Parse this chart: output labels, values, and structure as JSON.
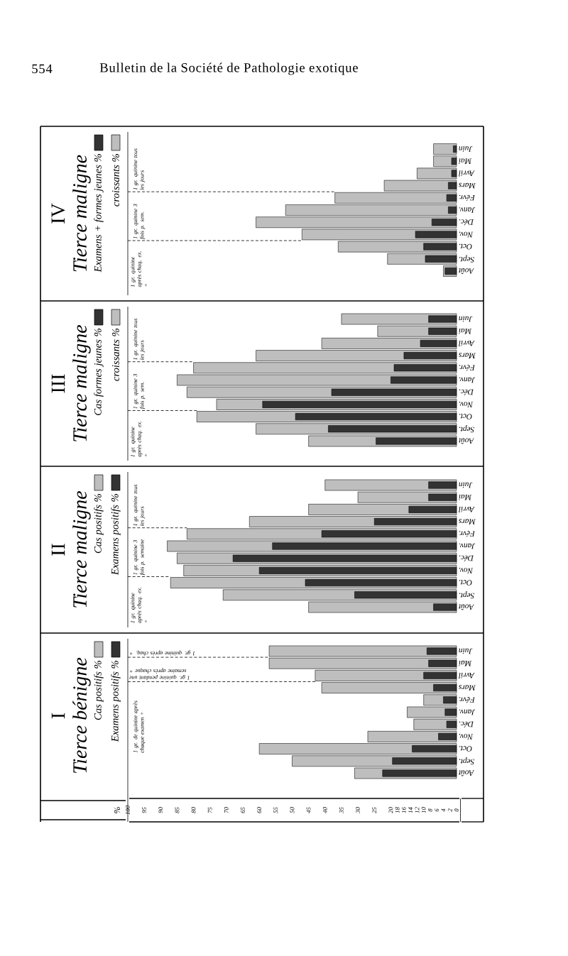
{
  "chart_data": [
    {
      "type": "bar",
      "orientation": "horizontal",
      "title": "I",
      "subtitle": "Tierce bénigne",
      "categories": [
        "Juin",
        "Mai",
        "Avril",
        "Mars",
        "Févr.",
        "Janv.",
        "Déc.",
        "Nov.",
        "Oct.",
        "Sept.",
        "Août"
      ],
      "series": [
        {
          "name": "Cas positifs %",
          "color": "#bebebe",
          "values": [
            57,
            57,
            43,
            41,
            10,
            15,
            13,
            27,
            60,
            50,
            31
          ]
        },
        {
          "name": "Examens positifs %",
          "color": "#333333",
          "values": [
            9,
            8.5,
            10,
            7,
            4,
            3.5,
            3,
            5.5,
            13.5,
            19.5,
            22.5
          ]
        }
      ],
      "xlim": [
        100,
        0
      ],
      "xticks": [
        0,
        2,
        4,
        6,
        8,
        10,
        12,
        14,
        16,
        18,
        20,
        25,
        30,
        35,
        40,
        45,
        50,
        55,
        60,
        65,
        70,
        75,
        80,
        85,
        90,
        95,
        100
      ],
      "legend": "left",
      "annotations": [
        "1 gr. de quinine après chaque examen +",
        {
          "text": "1 gr. quinine pendant une semaine après chaque +",
          "x": 43,
          "y": "Avril"
        },
        {
          "text": "1 gr. quinine après chaq. +",
          "x": 57,
          "y": "Juin"
        },
        "%"
      ]
    },
    {
      "type": "bar",
      "orientation": "horizontal",
      "title": "II",
      "subtitle": "Tierce maligne",
      "categories": [
        "Juin",
        "Mai",
        "Avril",
        "Mars",
        "Févr.",
        "Janv.",
        "Déc.",
        "Nov.",
        "Oct.",
        "Sept.",
        "Août"
      ],
      "series": [
        {
          "name": "Cas positifs %",
          "color": "#bebebe",
          "values": [
            40,
            30,
            45,
            63,
            82,
            88,
            85,
            83,
            87,
            71,
            45
          ]
        },
        {
          "name": "Examens positifs %",
          "color": "#333333",
          "values": [
            8.5,
            8.5,
            14.5,
            25,
            41,
            56,
            68,
            60,
            46,
            31,
            7
          ]
        }
      ],
      "xlim": [
        100,
        0
      ],
      "xticks": [
        0,
        2,
        4,
        6,
        8,
        10,
        12,
        14,
        16,
        18,
        20,
        25,
        30,
        35,
        40,
        45,
        50,
        55,
        60,
        65,
        70,
        75,
        80,
        85,
        90,
        95,
        100
      ],
      "tick_labels": "y",
      "legend": "left",
      "annotations": [
        "1 gr. quinine après chaq. ex. +",
        {
          "text": "1 gr. quinine 3 fois p. semaine",
          "x": 87,
          "y": "Oct."
        },
        {
          "text": "1 gr. quinine tous les jours",
          "x": 82,
          "y": "Févr."
        }
      ]
    },
    {
      "type": "bar",
      "orientation": "horizontal",
      "title": "III",
      "subtitle": "Tierce maligne",
      "categories": [
        "Juin",
        "Mai",
        "Avril",
        "Mars",
        "Févr.",
        "Janv.",
        "Déc.",
        "Nov.",
        "Oct.",
        "Sept.",
        "Août"
      ],
      "series": [
        {
          "name": "Cas formes jeunes %",
          "color": "#333333",
          "values": [
            8.5,
            8.5,
            11,
            16,
            19,
            20,
            38,
            59,
            49,
            39,
            24.5
          ]
        },
        {
          "name": "croissants %",
          "color": "#bebebe",
          "values": [
            35,
            24,
            41,
            61,
            80,
            85,
            82,
            73,
            79,
            61,
            45
          ]
        }
      ],
      "xlim": [
        100,
        0
      ],
      "xticks": [
        0,
        2,
        4,
        6,
        8,
        10,
        12,
        14,
        16,
        18,
        20,
        25,
        30,
        35,
        40,
        45,
        50,
        55,
        60,
        65,
        70,
        75,
        80,
        85,
        90,
        95,
        100
      ],
      "tick_labels": "y",
      "legend": "left",
      "annotations": [
        "1 gr. quinine après chaq. ex. +",
        {
          "text": "1 gr. quinine 3 fois p. sem.",
          "x": 79,
          "y": "Oct."
        },
        {
          "text": "1 gr. quinine tous les jours",
          "x": 80,
          "y": "Févr."
        }
      ]
    },
    {
      "type": "bar",
      "orientation": "horizontal",
      "title": "IV",
      "subtitle": "Tierce maligne",
      "categories": [
        "Juin",
        "Mai",
        "Avril",
        "Mars",
        "Févr.",
        "Janv.",
        "Déc.",
        "Nov.",
        "Oct.",
        "Sept.",
        "Août"
      ],
      "series": [
        {
          "name": "Examens + formes jeunes %",
          "color": "#333333",
          "values": [
            1,
            1.5,
            1.5,
            2.5,
            3,
            2.5,
            7.5,
            12.5,
            10,
            9.5,
            3.5
          ]
        },
        {
          "name": "croissants %",
          "color": "#bebebe",
          "values": [
            7,
            7,
            12,
            22,
            37,
            52,
            61,
            47,
            36,
            21,
            4
          ]
        }
      ],
      "xlim": [
        100,
        0
      ],
      "xticks": [
        0,
        2,
        4,
        6,
        8,
        10,
        12,
        14,
        16,
        18,
        20,
        25,
        30,
        35,
        40,
        45,
        50,
        55,
        60,
        65,
        70,
        75,
        80,
        85,
        90,
        95,
        100
      ],
      "tick_labels": "y",
      "legend": "left",
      "annotations": [
        "554",
        "Bulletin de la Société de Pathologie exotique",
        "1 gr. quinine après chaq. ex. +",
        {
          "text": "1 gr. quinine 3 fois p. sem.",
          "x": 47,
          "y": "Nov."
        },
        {
          "text": "1 gr. quinine tous les jours",
          "x": 37,
          "y": "Févr."
        }
      ]
    }
  ]
}
